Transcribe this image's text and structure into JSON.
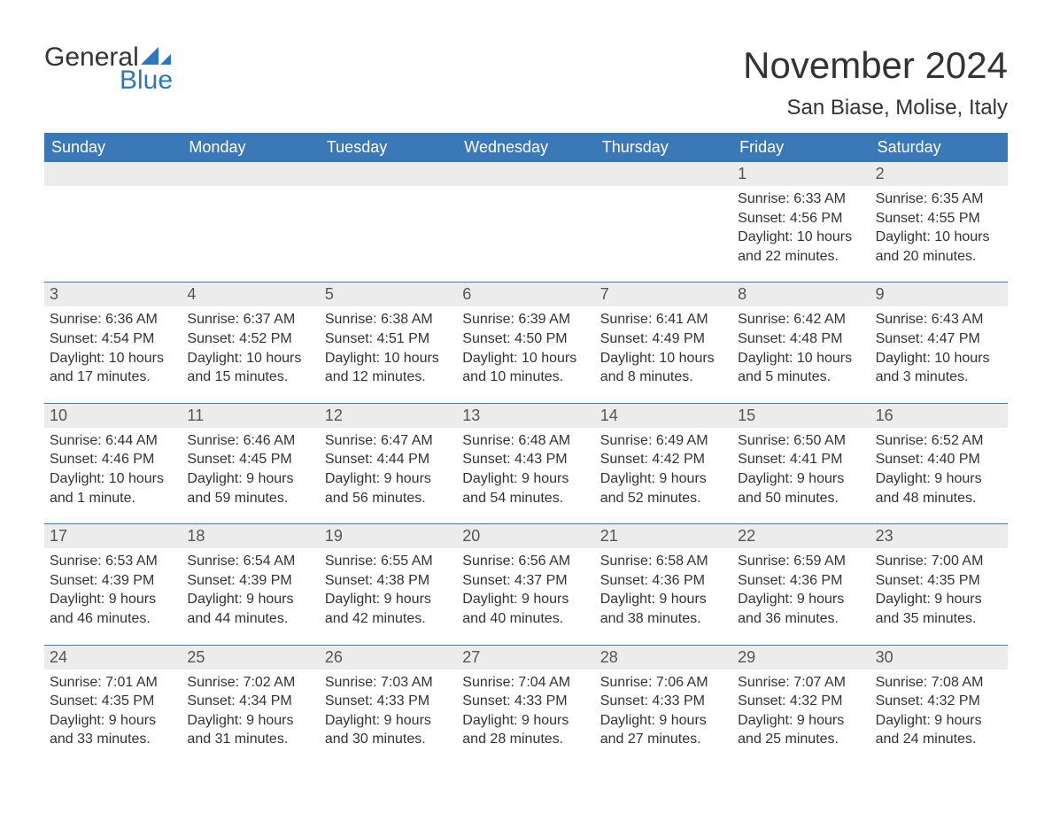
{
  "logo": {
    "word1": "General",
    "word2": "Blue"
  },
  "title": "November 2024",
  "location": "San Biase, Molise, Italy",
  "colors": {
    "header_bg": "#3b78b8",
    "header_text": "#ffffff",
    "daynum_bg": "#ececec",
    "border": "#3b78b8",
    "text": "#333333",
    "logo_accent": "#2f77bb"
  },
  "weekdays": [
    "Sunday",
    "Monday",
    "Tuesday",
    "Wednesday",
    "Thursday",
    "Friday",
    "Saturday"
  ],
  "weeks": [
    [
      null,
      null,
      null,
      null,
      null,
      {
        "day": "1",
        "sunrise": "Sunrise: 6:33 AM",
        "sunset": "Sunset: 4:56 PM",
        "daylight1": "Daylight: 10 hours",
        "daylight2": "and 22 minutes."
      },
      {
        "day": "2",
        "sunrise": "Sunrise: 6:35 AM",
        "sunset": "Sunset: 4:55 PM",
        "daylight1": "Daylight: 10 hours",
        "daylight2": "and 20 minutes."
      }
    ],
    [
      {
        "day": "3",
        "sunrise": "Sunrise: 6:36 AM",
        "sunset": "Sunset: 4:54 PM",
        "daylight1": "Daylight: 10 hours",
        "daylight2": "and 17 minutes."
      },
      {
        "day": "4",
        "sunrise": "Sunrise: 6:37 AM",
        "sunset": "Sunset: 4:52 PM",
        "daylight1": "Daylight: 10 hours",
        "daylight2": "and 15 minutes."
      },
      {
        "day": "5",
        "sunrise": "Sunrise: 6:38 AM",
        "sunset": "Sunset: 4:51 PM",
        "daylight1": "Daylight: 10 hours",
        "daylight2": "and 12 minutes."
      },
      {
        "day": "6",
        "sunrise": "Sunrise: 6:39 AM",
        "sunset": "Sunset: 4:50 PM",
        "daylight1": "Daylight: 10 hours",
        "daylight2": "and 10 minutes."
      },
      {
        "day": "7",
        "sunrise": "Sunrise: 6:41 AM",
        "sunset": "Sunset: 4:49 PM",
        "daylight1": "Daylight: 10 hours",
        "daylight2": "and 8 minutes."
      },
      {
        "day": "8",
        "sunrise": "Sunrise: 6:42 AM",
        "sunset": "Sunset: 4:48 PM",
        "daylight1": "Daylight: 10 hours",
        "daylight2": "and 5 minutes."
      },
      {
        "day": "9",
        "sunrise": "Sunrise: 6:43 AM",
        "sunset": "Sunset: 4:47 PM",
        "daylight1": "Daylight: 10 hours",
        "daylight2": "and 3 minutes."
      }
    ],
    [
      {
        "day": "10",
        "sunrise": "Sunrise: 6:44 AM",
        "sunset": "Sunset: 4:46 PM",
        "daylight1": "Daylight: 10 hours",
        "daylight2": "and 1 minute."
      },
      {
        "day": "11",
        "sunrise": "Sunrise: 6:46 AM",
        "sunset": "Sunset: 4:45 PM",
        "daylight1": "Daylight: 9 hours",
        "daylight2": "and 59 minutes."
      },
      {
        "day": "12",
        "sunrise": "Sunrise: 6:47 AM",
        "sunset": "Sunset: 4:44 PM",
        "daylight1": "Daylight: 9 hours",
        "daylight2": "and 56 minutes."
      },
      {
        "day": "13",
        "sunrise": "Sunrise: 6:48 AM",
        "sunset": "Sunset: 4:43 PM",
        "daylight1": "Daylight: 9 hours",
        "daylight2": "and 54 minutes."
      },
      {
        "day": "14",
        "sunrise": "Sunrise: 6:49 AM",
        "sunset": "Sunset: 4:42 PM",
        "daylight1": "Daylight: 9 hours",
        "daylight2": "and 52 minutes."
      },
      {
        "day": "15",
        "sunrise": "Sunrise: 6:50 AM",
        "sunset": "Sunset: 4:41 PM",
        "daylight1": "Daylight: 9 hours",
        "daylight2": "and 50 minutes."
      },
      {
        "day": "16",
        "sunrise": "Sunrise: 6:52 AM",
        "sunset": "Sunset: 4:40 PM",
        "daylight1": "Daylight: 9 hours",
        "daylight2": "and 48 minutes."
      }
    ],
    [
      {
        "day": "17",
        "sunrise": "Sunrise: 6:53 AM",
        "sunset": "Sunset: 4:39 PM",
        "daylight1": "Daylight: 9 hours",
        "daylight2": "and 46 minutes."
      },
      {
        "day": "18",
        "sunrise": "Sunrise: 6:54 AM",
        "sunset": "Sunset: 4:39 PM",
        "daylight1": "Daylight: 9 hours",
        "daylight2": "and 44 minutes."
      },
      {
        "day": "19",
        "sunrise": "Sunrise: 6:55 AM",
        "sunset": "Sunset: 4:38 PM",
        "daylight1": "Daylight: 9 hours",
        "daylight2": "and 42 minutes."
      },
      {
        "day": "20",
        "sunrise": "Sunrise: 6:56 AM",
        "sunset": "Sunset: 4:37 PM",
        "daylight1": "Daylight: 9 hours",
        "daylight2": "and 40 minutes."
      },
      {
        "day": "21",
        "sunrise": "Sunrise: 6:58 AM",
        "sunset": "Sunset: 4:36 PM",
        "daylight1": "Daylight: 9 hours",
        "daylight2": "and 38 minutes."
      },
      {
        "day": "22",
        "sunrise": "Sunrise: 6:59 AM",
        "sunset": "Sunset: 4:36 PM",
        "daylight1": "Daylight: 9 hours",
        "daylight2": "and 36 minutes."
      },
      {
        "day": "23",
        "sunrise": "Sunrise: 7:00 AM",
        "sunset": "Sunset: 4:35 PM",
        "daylight1": "Daylight: 9 hours",
        "daylight2": "and 35 minutes."
      }
    ],
    [
      {
        "day": "24",
        "sunrise": "Sunrise: 7:01 AM",
        "sunset": "Sunset: 4:35 PM",
        "daylight1": "Daylight: 9 hours",
        "daylight2": "and 33 minutes."
      },
      {
        "day": "25",
        "sunrise": "Sunrise: 7:02 AM",
        "sunset": "Sunset: 4:34 PM",
        "daylight1": "Daylight: 9 hours",
        "daylight2": "and 31 minutes."
      },
      {
        "day": "26",
        "sunrise": "Sunrise: 7:03 AM",
        "sunset": "Sunset: 4:33 PM",
        "daylight1": "Daylight: 9 hours",
        "daylight2": "and 30 minutes."
      },
      {
        "day": "27",
        "sunrise": "Sunrise: 7:04 AM",
        "sunset": "Sunset: 4:33 PM",
        "daylight1": "Daylight: 9 hours",
        "daylight2": "and 28 minutes."
      },
      {
        "day": "28",
        "sunrise": "Sunrise: 7:06 AM",
        "sunset": "Sunset: 4:33 PM",
        "daylight1": "Daylight: 9 hours",
        "daylight2": "and 27 minutes."
      },
      {
        "day": "29",
        "sunrise": "Sunrise: 7:07 AM",
        "sunset": "Sunset: 4:32 PM",
        "daylight1": "Daylight: 9 hours",
        "daylight2": "and 25 minutes."
      },
      {
        "day": "30",
        "sunrise": "Sunrise: 7:08 AM",
        "sunset": "Sunset: 4:32 PM",
        "daylight1": "Daylight: 9 hours",
        "daylight2": "and 24 minutes."
      }
    ]
  ]
}
